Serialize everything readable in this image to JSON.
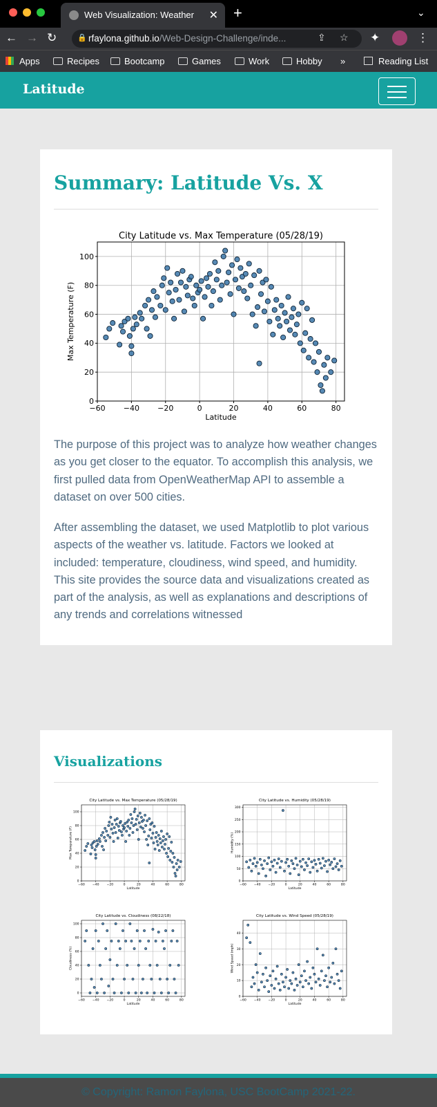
{
  "browser": {
    "tab_title": "Web Visualization: Weather",
    "url_host": "rfaylona.github.io",
    "url_path": "/Web-Design-Challenge/inde...",
    "bookmarks": [
      "Apps",
      "Recipes",
      "Bootcamp",
      "Games",
      "Work",
      "Hobby"
    ],
    "overflow": "»",
    "reading_list": "Reading List",
    "icons": [
      "back-icon",
      "forward-icon",
      "reload-icon",
      "lock-icon",
      "share-icon",
      "star-icon",
      "puzzle-icon",
      "menu-dots-icon"
    ]
  },
  "navbar": {
    "brand": "Latitude"
  },
  "summary": {
    "heading": "Summary: Latitude Vs. X",
    "paragraphs": [
      "The purpose of this project was to analyze how weather changes as you get closer to the equator. To accomplish this analysis, we first pulled data from OpenWeatherMap API to assemble a dataset on over 500 cities.",
      "After assembling the dataset, we used Matplotlib to plot various aspects of the weather vs. latitude. Factors we looked at included: temperature, cloudiness, wind speed, and humidity. This site provides the source data and visualizations created as part of the analysis, as well as explanations and descriptions of any trends and correlations witnessed"
    ]
  },
  "visualizations": {
    "heading": "Visualizations"
  },
  "chart_data": [
    {
      "type": "scatter",
      "title": "City Latitude vs. Max Temperature (05/28/19)",
      "xlabel": "Latitude",
      "ylabel": "Max Temperature (F)",
      "xlim": [
        -60,
        85
      ],
      "ylim": [
        0,
        110
      ],
      "xticks": [
        -60,
        -40,
        -20,
        0,
        20,
        40,
        60,
        80
      ],
      "yticks": [
        0,
        20,
        40,
        60,
        80,
        100
      ],
      "grid": true,
      "points": [
        [
          -55,
          44
        ],
        [
          -53,
          50
        ],
        [
          -51,
          54
        ],
        [
          -47,
          39
        ],
        [
          -46,
          52
        ],
        [
          -45,
          48
        ],
        [
          -44,
          55
        ],
        [
          -42,
          57
        ],
        [
          -41,
          45
        ],
        [
          -40,
          33
        ],
        [
          -40,
          38
        ],
        [
          -39,
          50
        ],
        [
          -38,
          58
        ],
        [
          -37,
          53
        ],
        [
          -35,
          61
        ],
        [
          -34,
          57
        ],
        [
          -32,
          66
        ],
        [
          -31,
          50
        ],
        [
          -30,
          70
        ],
        [
          -29,
          45
        ],
        [
          -28,
          63
        ],
        [
          -27,
          76
        ],
        [
          -26,
          58
        ],
        [
          -25,
          72
        ],
        [
          -23,
          66
        ],
        [
          -22,
          80
        ],
        [
          -21,
          85
        ],
        [
          -20,
          63
        ],
        [
          -19,
          92
        ],
        [
          -18,
          75
        ],
        [
          -17,
          82
        ],
        [
          -16,
          69
        ],
        [
          -15,
          57
        ],
        [
          -14,
          77
        ],
        [
          -13,
          88
        ],
        [
          -12,
          70
        ],
        [
          -11,
          82
        ],
        [
          -10,
          90
        ],
        [
          -9,
          62
        ],
        [
          -8,
          79
        ],
        [
          -7,
          73
        ],
        [
          -6,
          84
        ],
        [
          -5,
          86
        ],
        [
          -4,
          71
        ],
        [
          -3,
          66
        ],
        [
          -2,
          80
        ],
        [
          -1,
          75
        ],
        [
          0,
          77
        ],
        [
          1,
          83
        ],
        [
          2,
          57
        ],
        [
          3,
          72
        ],
        [
          4,
          85
        ],
        [
          5,
          79
        ],
        [
          6,
          88
        ],
        [
          7,
          66
        ],
        [
          8,
          76
        ],
        [
          9,
          96
        ],
        [
          10,
          84
        ],
        [
          11,
          90
        ],
        [
          12,
          70
        ],
        [
          13,
          80
        ],
        [
          14,
          100
        ],
        [
          15,
          104
        ],
        [
          16,
          82
        ],
        [
          17,
          89
        ],
        [
          18,
          74
        ],
        [
          19,
          94
        ],
        [
          20,
          60
        ],
        [
          21,
          84
        ],
        [
          22,
          98
        ],
        [
          23,
          78
        ],
        [
          24,
          92
        ],
        [
          25,
          86
        ],
        [
          26,
          76
        ],
        [
          27,
          88
        ],
        [
          28,
          71
        ],
        [
          29,
          95
        ],
        [
          30,
          80
        ],
        [
          31,
          60
        ],
        [
          32,
          87
        ],
        [
          33,
          52
        ],
        [
          34,
          65
        ],
        [
          35,
          90
        ],
        [
          35,
          26
        ],
        [
          36,
          74
        ],
        [
          37,
          82
        ],
        [
          38,
          62
        ],
        [
          39,
          84
        ],
        [
          40,
          69
        ],
        [
          41,
          55
        ],
        [
          42,
          79
        ],
        [
          43,
          46
        ],
        [
          44,
          63
        ],
        [
          45,
          70
        ],
        [
          46,
          57
        ],
        [
          47,
          52
        ],
        [
          48,
          66
        ],
        [
          49,
          44
        ],
        [
          50,
          61
        ],
        [
          51,
          55
        ],
        [
          52,
          72
        ],
        [
          53,
          49
        ],
        [
          54,
          58
        ],
        [
          55,
          64
        ],
        [
          56,
          46
        ],
        [
          57,
          53
        ],
        [
          58,
          60
        ],
        [
          59,
          40
        ],
        [
          60,
          68
        ],
        [
          61,
          35
        ],
        [
          62,
          47
        ],
        [
          63,
          64
        ],
        [
          64,
          30
        ],
        [
          65,
          43
        ],
        [
          66,
          56
        ],
        [
          67,
          27
        ],
        [
          68,
          40
        ],
        [
          69,
          20
        ],
        [
          70,
          34
        ],
        [
          71,
          11
        ],
        [
          72,
          7
        ],
        [
          73,
          25
        ],
        [
          74,
          16
        ],
        [
          75,
          30
        ],
        [
          77,
          20
        ],
        [
          79,
          28
        ]
      ]
    },
    {
      "type": "scatter",
      "title": "City Latitude vs. Max Temperature (05/28/19)",
      "xlabel": "Latitude",
      "ylabel": "Max Temperature (F)",
      "xlim": [
        -60,
        85
      ],
      "ylim": [
        0,
        110
      ],
      "xticks": [
        -60,
        -40,
        -20,
        0,
        20,
        40,
        60,
        80
      ],
      "yticks": [
        0,
        20,
        40,
        60,
        80,
        100
      ],
      "grid": true,
      "same_as_first": true
    },
    {
      "type": "scatter",
      "title": "City Latitude vs. Humidity (05/28/19)",
      "xlabel": "Latitude",
      "ylabel": "Humidity (%)",
      "xlim": [
        -60,
        85
      ],
      "ylim": [
        0,
        310
      ],
      "xticks": [
        -60,
        -40,
        -20,
        0,
        20,
        40,
        60,
        80
      ],
      "yticks": [
        0,
        50,
        100,
        150,
        200,
        250,
        300
      ],
      "grid": true,
      "points": [
        [
          -55,
          78
        ],
        [
          -52,
          55
        ],
        [
          -50,
          85
        ],
        [
          -48,
          40
        ],
        [
          -46,
          70
        ],
        [
          -44,
          92
        ],
        [
          -42,
          60
        ],
        [
          -40,
          75
        ],
        [
          -38,
          30
        ],
        [
          -36,
          88
        ],
        [
          -34,
          65
        ],
        [
          -32,
          50
        ],
        [
          -30,
          82
        ],
        [
          -28,
          20
        ],
        [
          -26,
          70
        ],
        [
          -24,
          94
        ],
        [
          -22,
          45
        ],
        [
          -20,
          78
        ],
        [
          -18,
          60
        ],
        [
          -16,
          85
        ],
        [
          -14,
          35
        ],
        [
          -12,
          72
        ],
        [
          -10,
          90
        ],
        [
          -8,
          55
        ],
        [
          -6,
          80
        ],
        [
          -4,
          287
        ],
        [
          -2,
          40
        ],
        [
          0,
          75
        ],
        [
          2,
          88
        ],
        [
          4,
          60
        ],
        [
          6,
          30
        ],
        [
          8,
          82
        ],
        [
          10,
          70
        ],
        [
          12,
          50
        ],
        [
          14,
          92
        ],
        [
          16,
          65
        ],
        [
          18,
          25
        ],
        [
          20,
          80
        ],
        [
          22,
          58
        ],
        [
          24,
          88
        ],
        [
          26,
          45
        ],
        [
          28,
          74
        ],
        [
          30,
          62
        ],
        [
          32,
          90
        ],
        [
          34,
          35
        ],
        [
          36,
          78
        ],
        [
          38,
          55
        ],
        [
          40,
          84
        ],
        [
          42,
          68
        ],
        [
          44,
          40
        ],
        [
          46,
          88
        ],
        [
          48,
          72
        ],
        [
          50,
          52
        ],
        [
          52,
          92
        ],
        [
          54,
          62
        ],
        [
          56,
          80
        ],
        [
          58,
          38
        ],
        [
          60,
          85
        ],
        [
          62,
          66
        ],
        [
          64,
          76
        ],
        [
          66,
          50
        ],
        [
          68,
          90
        ],
        [
          70,
          58
        ],
        [
          72,
          70
        ],
        [
          74,
          45
        ],
        [
          76,
          82
        ],
        [
          78,
          60
        ]
      ]
    },
    {
      "type": "scatter",
      "title": "City Latitude vs. Cloudiness (08/22/18)",
      "xlabel": "Latitude",
      "ylabel": "Cloudiness (%)",
      "xlim": [
        -60,
        85
      ],
      "ylim": [
        -5,
        105
      ],
      "xticks": [
        -60,
        -40,
        -20,
        0,
        20,
        40,
        60,
        80
      ],
      "yticks": [
        0,
        20,
        40,
        60,
        80,
        100
      ],
      "grid": true,
      "points": [
        [
          -55,
          75
        ],
        [
          -53,
          90
        ],
        [
          -50,
          40
        ],
        [
          -48,
          0
        ],
        [
          -46,
          20
        ],
        [
          -44,
          64
        ],
        [
          -42,
          8
        ],
        [
          -40,
          90
        ],
        [
          -38,
          0
        ],
        [
          -36,
          75
        ],
        [
          -34,
          40
        ],
        [
          -32,
          20
        ],
        [
          -30,
          100
        ],
        [
          -28,
          0
        ],
        [
          -26,
          64
        ],
        [
          -24,
          90
        ],
        [
          -22,
          10
        ],
        [
          -20,
          48
        ],
        [
          -18,
          75
        ],
        [
          -16,
          20
        ],
        [
          -14,
          0
        ],
        [
          -12,
          100
        ],
        [
          -10,
          40
        ],
        [
          -8,
          75
        ],
        [
          -6,
          64
        ],
        [
          -4,
          0
        ],
        [
          -2,
          90
        ],
        [
          0,
          20
        ],
        [
          2,
          75
        ],
        [
          4,
          40
        ],
        [
          6,
          0
        ],
        [
          8,
          100
        ],
        [
          10,
          75
        ],
        [
          12,
          20
        ],
        [
          14,
          64
        ],
        [
          16,
          0
        ],
        [
          18,
          90
        ],
        [
          20,
          40
        ],
        [
          22,
          75
        ],
        [
          24,
          0
        ],
        [
          26,
          20
        ],
        [
          28,
          90
        ],
        [
          30,
          64
        ],
        [
          32,
          0
        ],
        [
          34,
          75
        ],
        [
          36,
          40
        ],
        [
          38,
          20
        ],
        [
          40,
          92
        ],
        [
          42,
          0
        ],
        [
          44,
          75
        ],
        [
          46,
          40
        ],
        [
          48,
          88
        ],
        [
          50,
          20
        ],
        [
          52,
          0
        ],
        [
          54,
          75
        ],
        [
          56,
          64
        ],
        [
          58,
          90
        ],
        [
          60,
          20
        ],
        [
          62,
          0
        ],
        [
          64,
          40
        ],
        [
          66,
          75
        ],
        [
          68,
          90
        ],
        [
          70,
          20
        ],
        [
          72,
          0
        ],
        [
          74,
          75
        ],
        [
          76,
          40
        ]
      ]
    },
    {
      "type": "scatter",
      "title": "City Latitude vs. Wind Speed (05/28/19)",
      "xlabel": "Latitude",
      "ylabel": "Wind Speed (mph)",
      "xlim": [
        -60,
        85
      ],
      "ylim": [
        0,
        48
      ],
      "xticks": [
        -60,
        -40,
        -20,
        0,
        20,
        40,
        60,
        80
      ],
      "yticks": [
        0,
        10,
        20,
        30,
        40
      ],
      "grid": true,
      "points": [
        [
          -55,
          37
        ],
        [
          -53,
          45
        ],
        [
          -50,
          34
        ],
        [
          -48,
          6
        ],
        [
          -46,
          12
        ],
        [
          -44,
          8
        ],
        [
          -42,
          20
        ],
        [
          -40,
          15
        ],
        [
          -38,
          4
        ],
        [
          -36,
          27
        ],
        [
          -34,
          9
        ],
        [
          -32,
          14
        ],
        [
          -30,
          6
        ],
        [
          -28,
          18
        ],
        [
          -26,
          10
        ],
        [
          -24,
          3
        ],
        [
          -22,
          13
        ],
        [
          -20,
          7
        ],
        [
          -18,
          16
        ],
        [
          -16,
          5
        ],
        [
          -14,
          11
        ],
        [
          -12,
          19
        ],
        [
          -10,
          8
        ],
        [
          -8,
          4
        ],
        [
          -6,
          14
        ],
        [
          -4,
          9
        ],
        [
          -2,
          6
        ],
        [
          0,
          12
        ],
        [
          2,
          17
        ],
        [
          4,
          5
        ],
        [
          6,
          10
        ],
        [
          8,
          8
        ],
        [
          10,
          15
        ],
        [
          12,
          4
        ],
        [
          14,
          11
        ],
        [
          16,
          7
        ],
        [
          18,
          20
        ],
        [
          20,
          9
        ],
        [
          22,
          13
        ],
        [
          24,
          6
        ],
        [
          26,
          16
        ],
        [
          28,
          10
        ],
        [
          30,
          22
        ],
        [
          32,
          8
        ],
        [
          34,
          12
        ],
        [
          36,
          5
        ],
        [
          38,
          18
        ],
        [
          40,
          14
        ],
        [
          42,
          9
        ],
        [
          44,
          30
        ],
        [
          46,
          11
        ],
        [
          48,
          7
        ],
        [
          50,
          16
        ],
        [
          52,
          26
        ],
        [
          54,
          10
        ],
        [
          56,
          13
        ],
        [
          58,
          6
        ],
        [
          60,
          18
        ],
        [
          62,
          9
        ],
        [
          64,
          12
        ],
        [
          66,
          21
        ],
        [
          68,
          8
        ],
        [
          70,
          30
        ],
        [
          72,
          14
        ],
        [
          74,
          10
        ],
        [
          76,
          5
        ],
        [
          78,
          16
        ]
      ]
    }
  ],
  "footer": {
    "text": "© Copyright: Ramon Faylona, USC BootCamp 2021-22."
  }
}
